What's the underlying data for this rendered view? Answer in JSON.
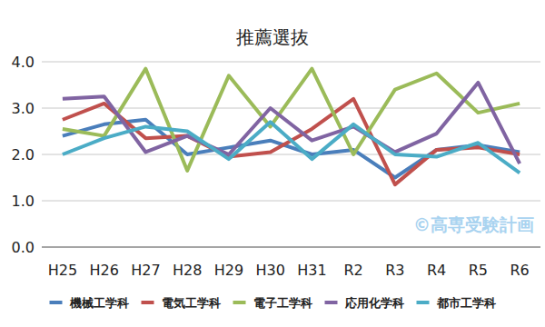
{
  "chart_data": {
    "type": "line",
    "title": "推薦選抜",
    "annotations": [
      "©高専受験計画"
    ],
    "categories": [
      "H25",
      "H26",
      "H27",
      "H28",
      "H29",
      "H30",
      "H31",
      "R2",
      "R3",
      "R4",
      "R5",
      "R6"
    ],
    "series": [
      {
        "name": "機械工学科",
        "color": "#4a7ebb",
        "values": [
          2.4,
          2.65,
          2.75,
          2.0,
          2.15,
          2.3,
          2.0,
          2.1,
          1.5,
          2.1,
          2.2,
          2.05
        ]
      },
      {
        "name": "電気工学科",
        "color": "#c0504d",
        "values": [
          2.75,
          3.1,
          2.35,
          2.4,
          1.95,
          2.05,
          2.55,
          3.2,
          1.35,
          2.1,
          2.15,
          2.0
        ]
      },
      {
        "name": "電子工学科",
        "color": "#9bbb59",
        "values": [
          2.55,
          2.4,
          3.85,
          1.65,
          3.7,
          2.6,
          3.85,
          2.0,
          3.4,
          3.75,
          2.9,
          3.1
        ]
      },
      {
        "name": "応用化学科",
        "color": "#8064a2",
        "values": [
          3.2,
          3.25,
          2.05,
          2.4,
          2.0,
          3.0,
          2.3,
          2.6,
          2.05,
          2.45,
          3.55,
          1.8
        ]
      },
      {
        "name": "都市工学科",
        "color": "#4bacc6",
        "values": [
          2.0,
          2.35,
          2.6,
          2.5,
          1.9,
          2.7,
          1.9,
          2.65,
          2.0,
          1.95,
          2.25,
          1.6
        ]
      }
    ],
    "ylim": [
      0,
      4
    ],
    "yticks": [
      {
        "value": 0,
        "label": "0.0"
      },
      {
        "value": 1,
        "label": "1.0"
      },
      {
        "value": 2,
        "label": "2.0"
      },
      {
        "value": 3,
        "label": "3.0"
      },
      {
        "value": 4,
        "label": "4.0"
      }
    ],
    "grid": true,
    "legend": "bottom"
  }
}
